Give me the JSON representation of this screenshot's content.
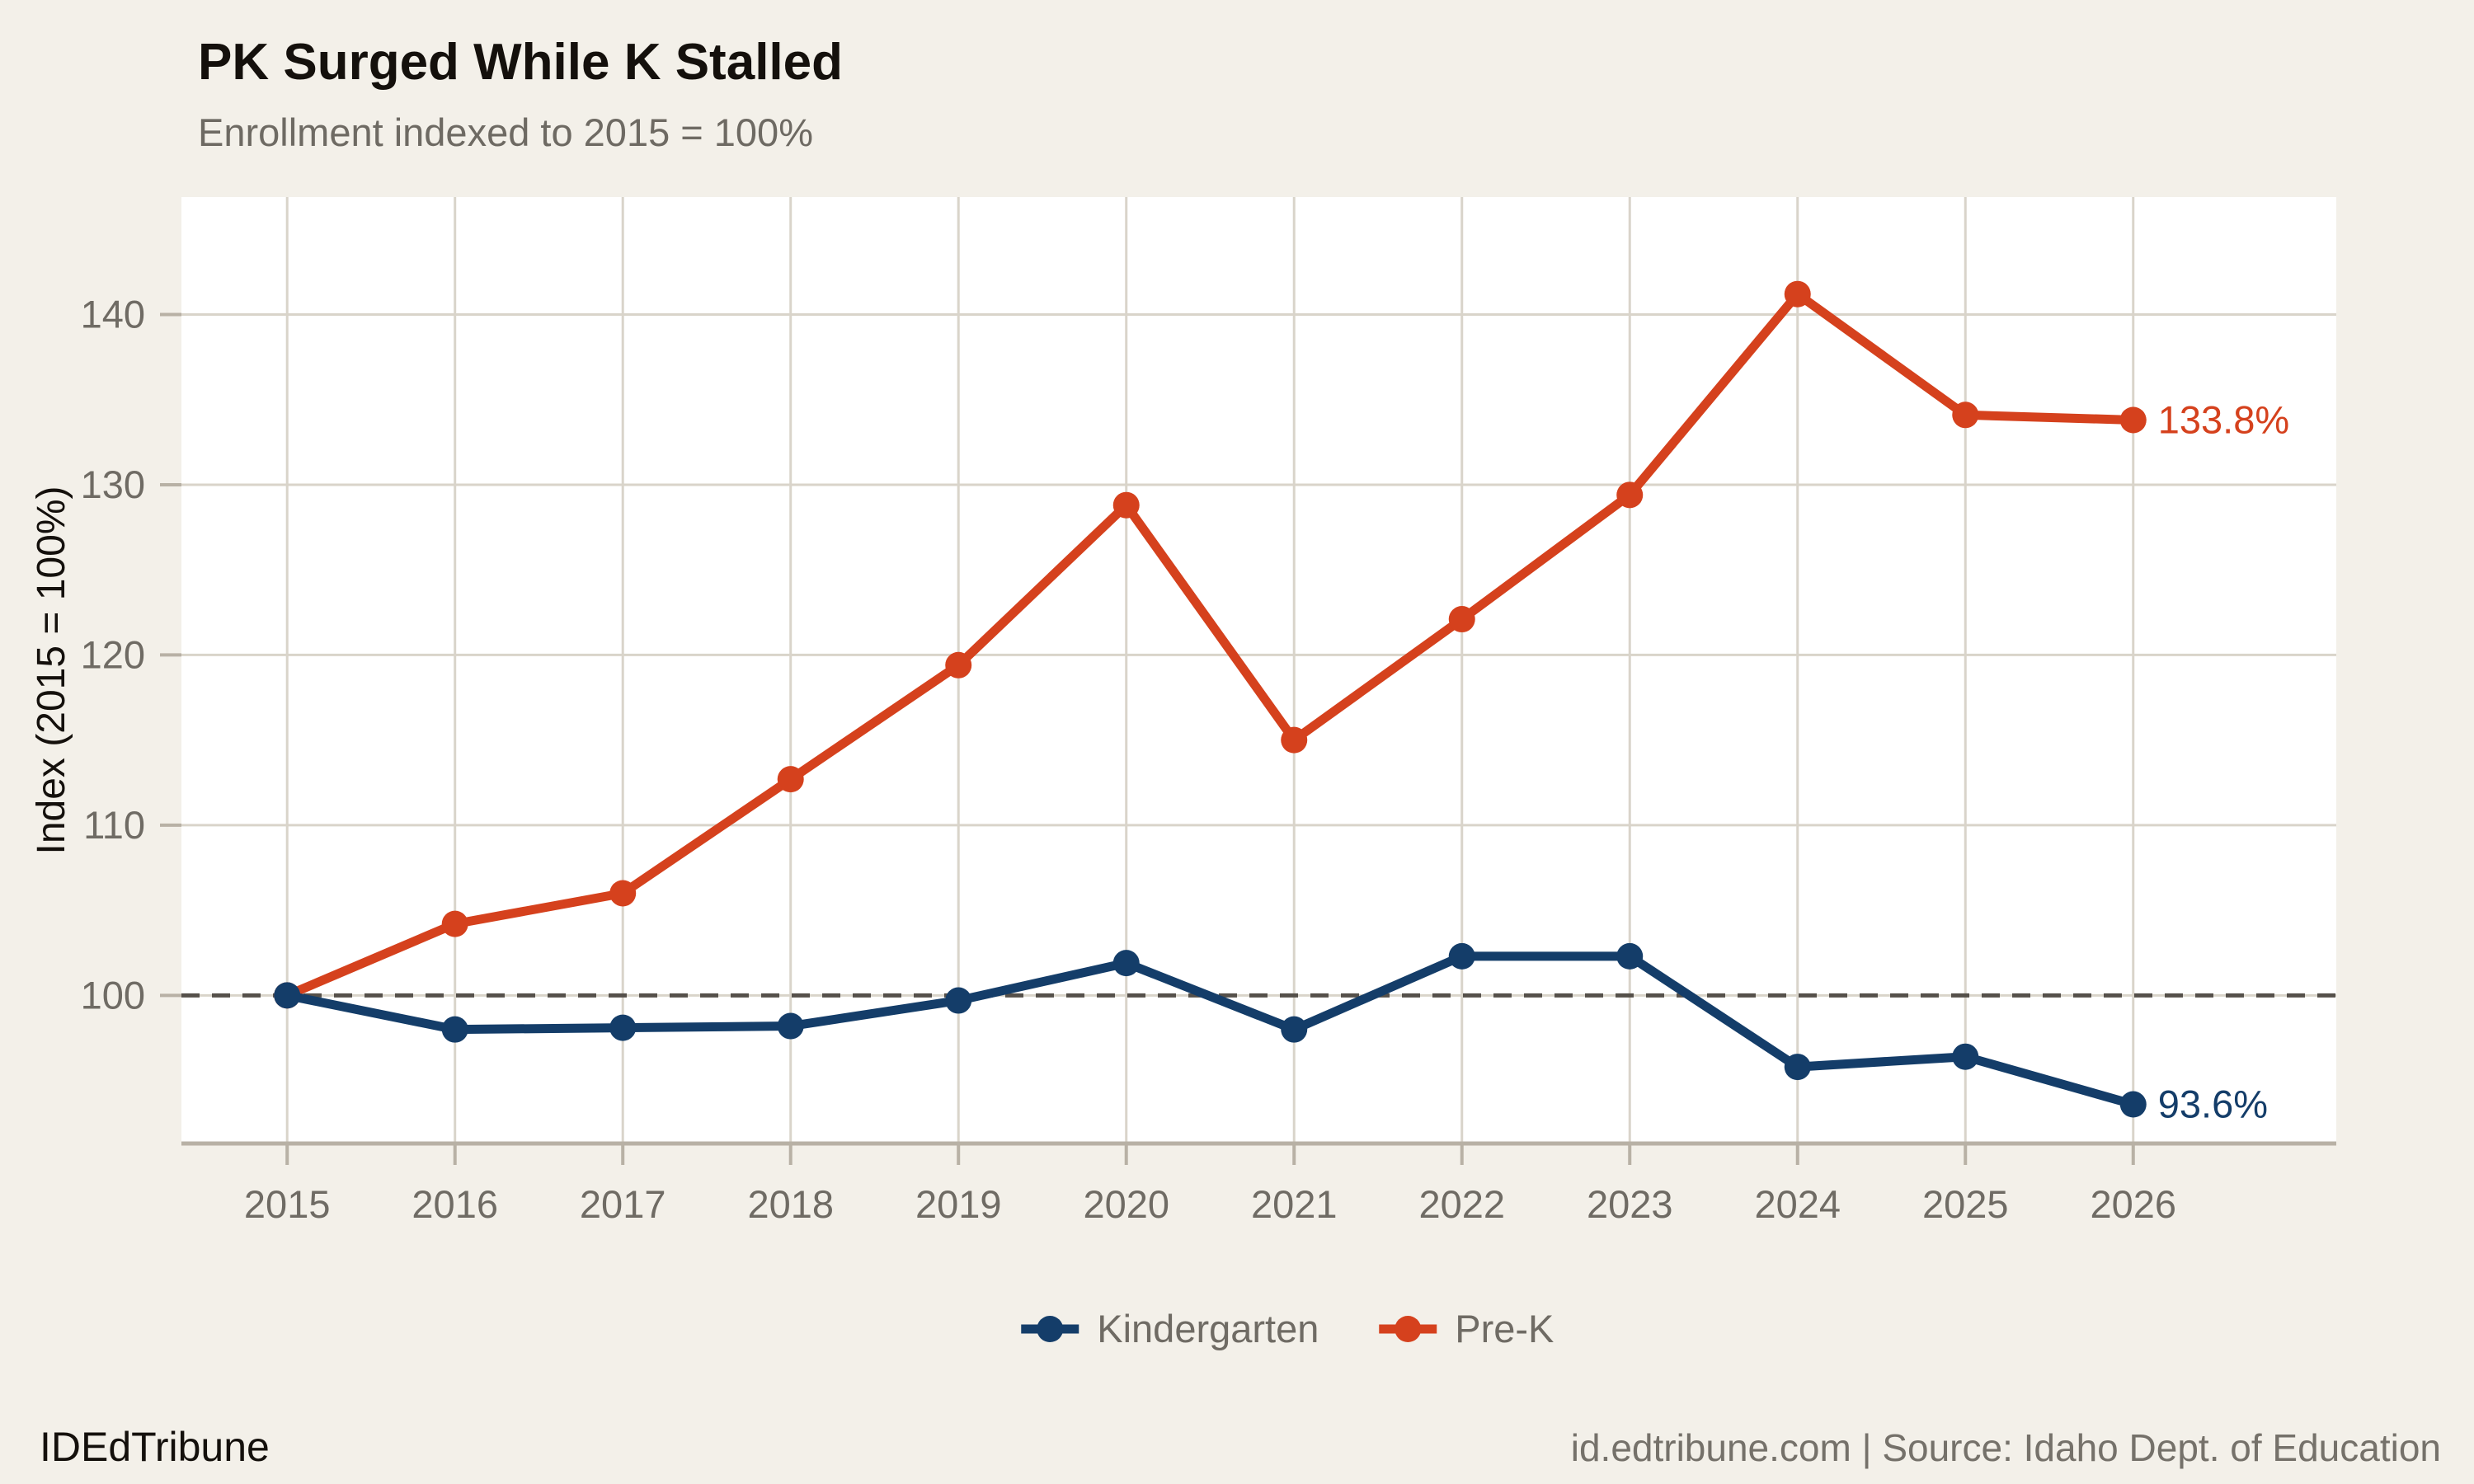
{
  "header": {
    "title": "PK Surged While K Stalled",
    "subtitle": "Enrollment indexed to 2015 = 100%"
  },
  "footer": {
    "brand": "IDEdTribune",
    "source": "id.edtribune.com | Source: Idaho Dept. of Education"
  },
  "chart_data": {
    "type": "line",
    "title": "PK Surged While K Stalled",
    "subtitle": "Enrollment indexed to 2015 = 100%",
    "xlabel": "",
    "ylabel": "Index (2015 = 100%)",
    "x": [
      2015,
      2016,
      2017,
      2018,
      2019,
      2020,
      2021,
      2022,
      2023,
      2024,
      2025,
      2026
    ],
    "series": [
      {
        "name": "Pre-K",
        "color": "#d5411d",
        "values": [
          100,
          104.2,
          106.0,
          112.7,
          119.4,
          128.8,
          115.0,
          122.1,
          129.4,
          141.2,
          134.1,
          133.8
        ],
        "end_label": "133.8%"
      },
      {
        "name": "Kindergarten",
        "color": "#143d69",
        "values": [
          100,
          98.0,
          98.1,
          98.2,
          99.7,
          101.9,
          98.0,
          102.3,
          102.3,
          95.8,
          96.4,
          93.6
        ],
        "end_label": "93.6%"
      }
    ],
    "legend_order": [
      "Kindergarten",
      "Pre-K"
    ],
    "yticks": [
      100,
      110,
      120,
      130,
      140
    ],
    "ylim": [
      91.3,
      146.9
    ],
    "xlim": [
      2014.37,
      2027.21
    ],
    "reference_line": {
      "y": 100,
      "style": "dashed"
    },
    "grid": true,
    "legend_position": "bottom"
  },
  "colors": {
    "background": "#f3f0e9",
    "panel": "#ffffff",
    "gridline": "#d9d4ca",
    "axis_line": "#b8b1a5",
    "tick_label": "#6f6b64",
    "reference_line": "#55504a",
    "kindergarten": "#143d69",
    "pre_k": "#d5411d"
  }
}
